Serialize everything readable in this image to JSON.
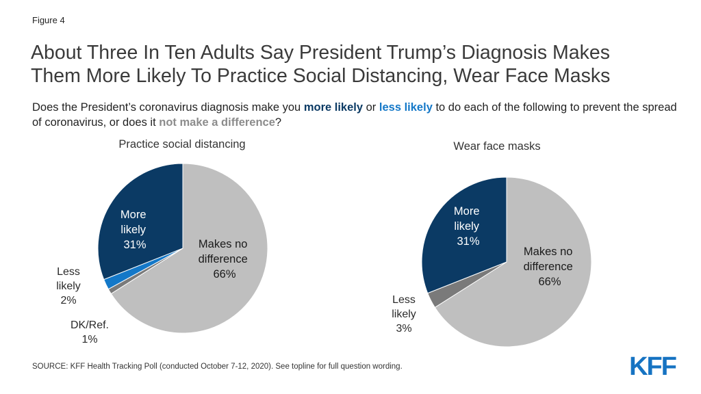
{
  "figure_label": "Figure 4",
  "title_line1": "About Three In Ten Adults Say President Trump’s Diagnosis Makes",
  "title_line2": "Them More Likely To Practice Social Distancing, Wear Face Masks",
  "subtitle": {
    "part1": "Does the President’s coronavirus diagnosis make you ",
    "more": "more likely",
    "part2": " or ",
    "less": "less likely",
    "part3": " to do each of the following to prevent the spread of coronavirus, or does it ",
    "none": "not make a difference",
    "part4": "?"
  },
  "chart_data": [
    {
      "type": "pie",
      "title": "Practice social distancing",
      "slices": [
        {
          "label": "Makes no difference",
          "value": 66,
          "color": "#bfbfbf"
        },
        {
          "label": "DK/Ref.",
          "value": 1,
          "color": "#7a7a7a"
        },
        {
          "label": "Less likely",
          "value": 2,
          "color": "#1478c8"
        },
        {
          "label": "More likely",
          "value": 31,
          "color": "#0b3a64"
        }
      ]
    },
    {
      "type": "pie",
      "title": "Wear face masks",
      "slices": [
        {
          "label": "Makes no difference",
          "value": 66,
          "color": "#bfbfbf"
        },
        {
          "label": "Less likely",
          "value": 3,
          "color": "#7a7a7a"
        },
        {
          "label": "More likely",
          "value": 31,
          "color": "#0b3a64"
        }
      ]
    }
  ],
  "labels": {
    "pie1": {
      "more": [
        "More",
        "likely",
        "31%"
      ],
      "none": [
        "Makes no",
        "difference",
        "66%"
      ],
      "less": [
        "Less",
        "likely",
        "2%"
      ],
      "dk": [
        "DK/Ref.",
        "1%"
      ]
    },
    "pie2": {
      "more": [
        "More",
        "likely",
        "31%"
      ],
      "none": [
        "Makes no",
        "difference",
        "66%"
      ],
      "less": [
        "Less",
        "likely",
        "3%"
      ]
    }
  },
  "source": "SOURCE: KFF Health Tracking Poll (conducted October 7-12, 2020). See topline for full question wording.",
  "logo_text": "KFF"
}
